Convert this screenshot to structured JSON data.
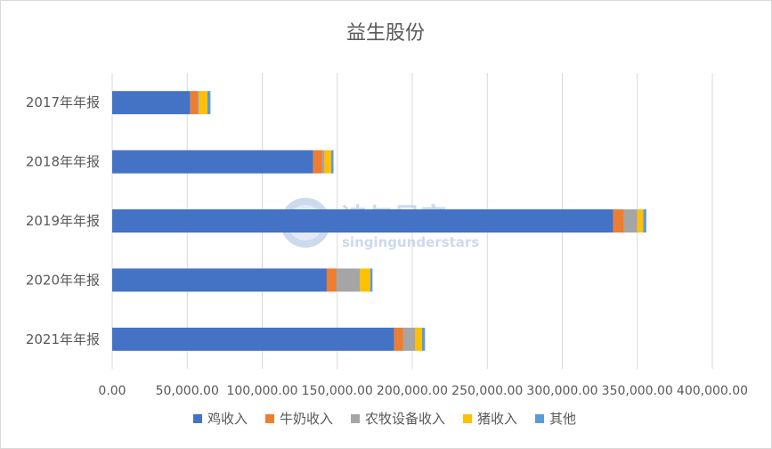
{
  "chart_data": {
    "type": "bar",
    "orientation": "horizontal",
    "stacked": true,
    "title": "益生股份",
    "categories": [
      "2017年年报",
      "2018年年报",
      "2019年年报",
      "2020年年报",
      "2021年年报"
    ],
    "series": [
      {
        "name": "鸡收入",
        "color": "#4472C4",
        "values": [
          52000,
          134000,
          334000,
          143000,
          188000
        ]
      },
      {
        "name": "牛奶收入",
        "color": "#ED7D31",
        "values": [
          5000,
          6000,
          7000,
          6500,
          6000
        ]
      },
      {
        "name": "农牧设备收入",
        "color": "#A5A5A5",
        "values": [
          1000,
          1500,
          9000,
          15500,
          8000
        ]
      },
      {
        "name": "猪收入",
        "color": "#FFC000",
        "values": [
          5500,
          4500,
          4000,
          7000,
          4500
        ]
      },
      {
        "name": "其他",
        "color": "#5B9BD5",
        "values": [
          2000,
          1500,
          2000,
          1500,
          2000
        ]
      }
    ],
    "xlim": [
      0,
      400000
    ],
    "xticks": [
      "0.00",
      "50,000.00",
      "100,000.00",
      "150,000.00",
      "200,000.00",
      "250,000.00",
      "300,000.00",
      "350,000.00",
      "400,000.00"
    ],
    "grid": "vertical",
    "legend": "bottom"
  },
  "watermark": {
    "title": "诗与星空",
    "subtitle": "singingunderstars"
  }
}
